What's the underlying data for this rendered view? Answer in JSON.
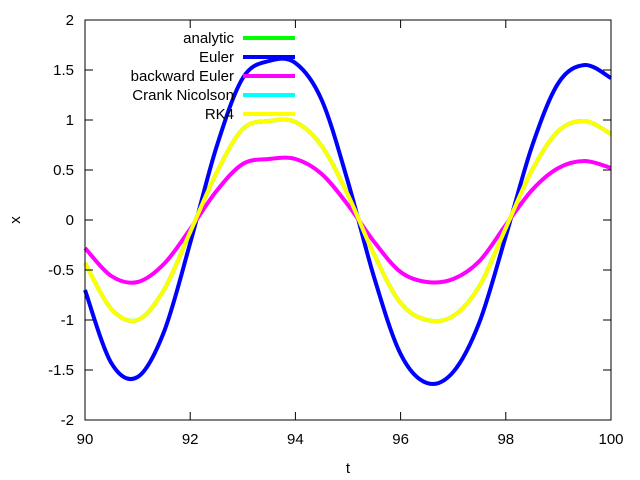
{
  "chart_data": {
    "type": "line",
    "xlabel": "t",
    "ylabel": "x",
    "xlim": [
      90,
      100
    ],
    "ylim": [
      -2,
      2
    ],
    "xticks": [
      90,
      92,
      94,
      96,
      98,
      100
    ],
    "yticks": [
      -2,
      -1.5,
      -1,
      -0.5,
      0,
      0.5,
      1,
      1.5,
      2
    ],
    "xtick_labels": [
      "90",
      "92",
      "94",
      "96",
      "98",
      "100"
    ],
    "ytick_labels": [
      "-2",
      "-1.5",
      "-1",
      "-0.5",
      "0",
      "0.5",
      "1",
      "1.5",
      "2"
    ],
    "grid": false,
    "legend_position": "top-left",
    "x": [
      90,
      90.5,
      91,
      91.5,
      92,
      92.5,
      93,
      93.5,
      94,
      94.5,
      95,
      95.5,
      96,
      96.5,
      97,
      97.5,
      98,
      98.5,
      99,
      99.5,
      100
    ],
    "series": [
      {
        "name": "analytic",
        "color": "#00ff00",
        "values": [
          -0.43,
          -0.89,
          -1.0,
          -0.7,
          -0.12,
          0.47,
          0.91,
          0.99,
          0.98,
          0.74,
          0.25,
          -0.35,
          -0.83,
          -1.0,
          -0.96,
          -0.66,
          -0.08,
          0.5,
          0.89,
          0.99,
          0.86
        ]
      },
      {
        "name": "Euler",
        "color": "#0000ff",
        "values": [
          -0.7,
          -1.43,
          -1.57,
          -1.12,
          -0.23,
          0.73,
          1.42,
          1.59,
          1.57,
          1.2,
          0.38,
          -0.58,
          -1.34,
          -1.63,
          -1.52,
          -1.02,
          -0.16,
          0.74,
          1.37,
          1.55,
          1.42
        ]
      },
      {
        "name": "backward Euler",
        "color": "#ff00ff",
        "values": [
          -0.28,
          -0.56,
          -0.62,
          -0.44,
          -0.09,
          0.29,
          0.56,
          0.61,
          0.61,
          0.46,
          0.15,
          -0.22,
          -0.52,
          -0.62,
          -0.59,
          -0.41,
          -0.05,
          0.3,
          0.52,
          0.59,
          0.52
        ]
      },
      {
        "name": "Crank Nicolson",
        "color": "#00ffff",
        "values": [
          -0.43,
          -0.89,
          -1.0,
          -0.7,
          -0.12,
          0.47,
          0.91,
          0.99,
          0.98,
          0.74,
          0.25,
          -0.35,
          -0.83,
          -1.0,
          -0.96,
          -0.66,
          -0.08,
          0.5,
          0.89,
          0.99,
          0.86
        ]
      },
      {
        "name": "RK4",
        "color": "#ffff00",
        "values": [
          -0.43,
          -0.89,
          -1.0,
          -0.7,
          -0.12,
          0.47,
          0.91,
          0.99,
          0.98,
          0.74,
          0.25,
          -0.35,
          -0.83,
          -1.0,
          -0.96,
          -0.66,
          -0.08,
          0.5,
          0.89,
          0.99,
          0.86
        ]
      }
    ]
  }
}
